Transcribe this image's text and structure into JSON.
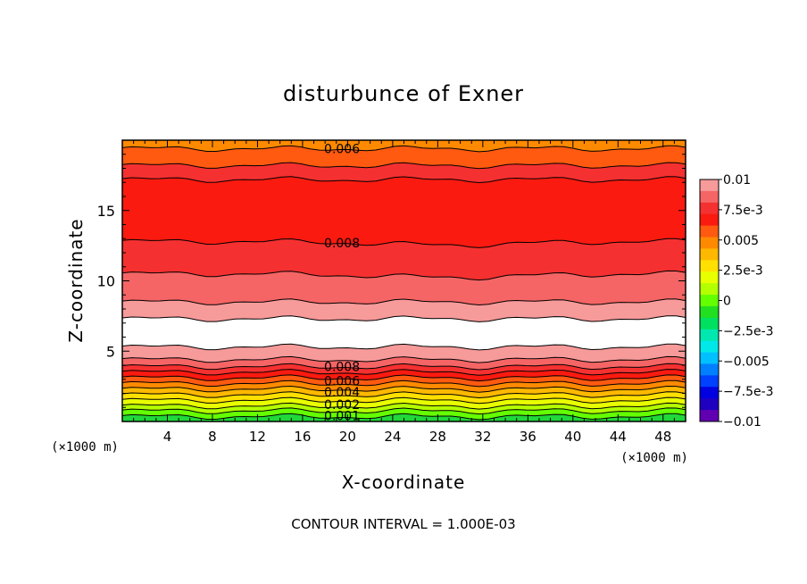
{
  "chart_data": {
    "type": "contour",
    "title": "disturbunce of Exner",
    "xlabel": "X-coordinate",
    "ylabel": "Z-coordinate",
    "x_unit": "(×1000 m)",
    "y_unit": "(×1000 m)",
    "xlim": [
      0,
      50
    ],
    "ylim": [
      0,
      20
    ],
    "x_ticks": [
      4,
      8,
      12,
      16,
      20,
      24,
      28,
      32,
      36,
      40,
      44,
      48
    ],
    "y_ticks": [
      5,
      10,
      15
    ],
    "footer": "CONTOUR INTERVAL = 1.000E-03",
    "colorbar": {
      "labels": [
        "0.01",
        "7.5e-3",
        "0.005",
        "2.5e-3",
        "0",
        "−2.5e-3",
        "−0.005",
        "−7.5e-3",
        "−0.01"
      ],
      "colors": [
        "#f79a9a",
        "#f56565",
        "#f53030",
        "#fa1a10",
        "#ff5a10",
        "#ff8a00",
        "#ffb800",
        "#ffe000",
        "#e8ff00",
        "#b4ff00",
        "#64ff00",
        "#20e020",
        "#00e060",
        "#00e8b0",
        "#00e8e8",
        "#00c0ff",
        "#0080ff",
        "#0040ff",
        "#0000e0",
        "#2000c0",
        "#6000b0"
      ]
    },
    "contour_labels": [
      {
        "text": "0.006",
        "x": 19.5,
        "z": 19.4
      },
      {
        "text": "0.008",
        "x": 19.5,
        "z": 12.7
      },
      {
        "text": "0.008",
        "x": 19.5,
        "z": 3.9
      },
      {
        "text": "0.006",
        "x": 19.5,
        "z": 2.9
      },
      {
        "text": "0.004",
        "x": 19.5,
        "z": 2.1
      },
      {
        "text": "0.002",
        "x": 19.5,
        "z": 1.2
      },
      {
        "text": "0.001",
        "x": 19.5,
        "z": 0.4
      }
    ]
  }
}
